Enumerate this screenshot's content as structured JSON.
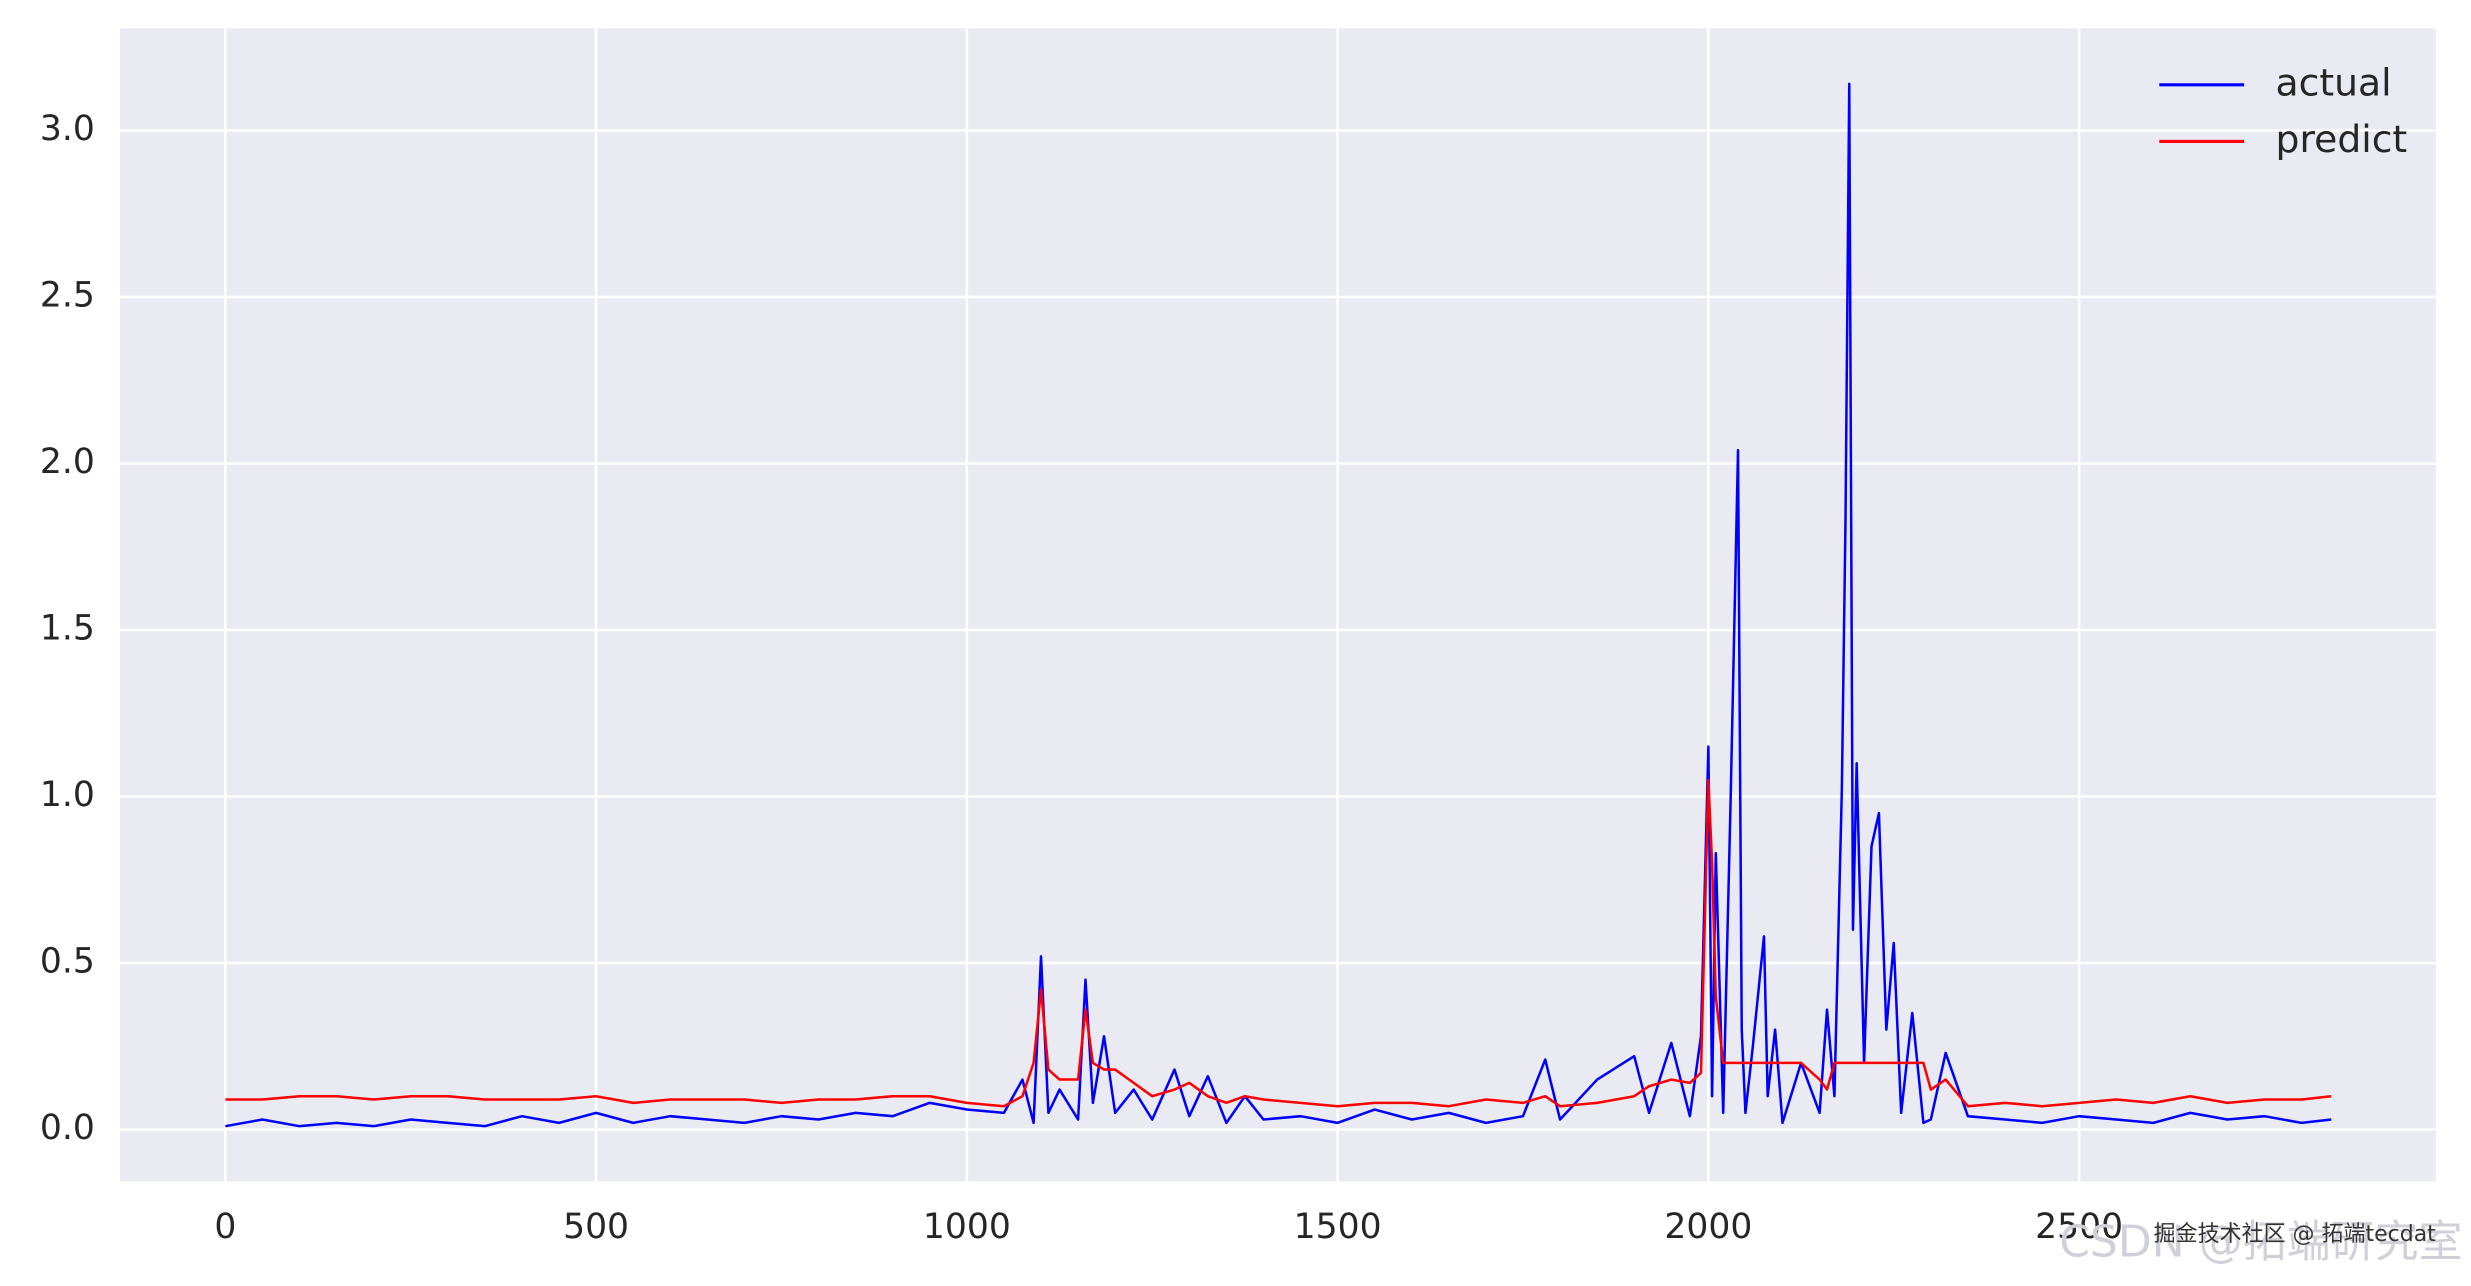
{
  "chart_data": {
    "type": "line",
    "x": [
      0,
      50,
      100,
      150,
      200,
      250,
      300,
      350,
      400,
      450,
      500,
      550,
      600,
      650,
      700,
      750,
      800,
      850,
      900,
      950,
      1000,
      1050,
      1075,
      1090,
      1100,
      1110,
      1125,
      1150,
      1160,
      1170,
      1185,
      1200,
      1225,
      1250,
      1280,
      1300,
      1325,
      1350,
      1375,
      1400,
      1450,
      1500,
      1550,
      1600,
      1650,
      1700,
      1750,
      1780,
      1800,
      1850,
      1900,
      1920,
      1950,
      1975,
      1990,
      2000,
      2005,
      2010,
      2020,
      2030,
      2040,
      2045,
      2050,
      2060,
      2075,
      2080,
      2090,
      2100,
      2125,
      2150,
      2160,
      2170,
      2180,
      2185,
      2190,
      2195,
      2200,
      2210,
      2220,
      2230,
      2240,
      2250,
      2260,
      2275,
      2290,
      2300,
      2320,
      2350,
      2400,
      2450,
      2500,
      2550,
      2600,
      2650,
      2700,
      2750,
      2800,
      2840
    ],
    "series": [
      {
        "name": "actual",
        "color": "#0000ff",
        "values": [
          0.01,
          0.03,
          0.01,
          0.02,
          0.01,
          0.03,
          0.02,
          0.01,
          0.04,
          0.02,
          0.05,
          0.02,
          0.04,
          0.03,
          0.02,
          0.04,
          0.03,
          0.05,
          0.04,
          0.08,
          0.06,
          0.05,
          0.15,
          0.02,
          0.52,
          0.05,
          0.12,
          0.03,
          0.45,
          0.08,
          0.28,
          0.05,
          0.12,
          0.03,
          0.18,
          0.04,
          0.16,
          0.02,
          0.1,
          0.03,
          0.04,
          0.02,
          0.06,
          0.03,
          0.05,
          0.02,
          0.04,
          0.21,
          0.03,
          0.15,
          0.22,
          0.05,
          0.26,
          0.04,
          0.28,
          1.15,
          0.1,
          0.83,
          0.05,
          0.99,
          2.04,
          0.3,
          0.05,
          0.25,
          0.58,
          0.1,
          0.3,
          0.02,
          0.2,
          0.05,
          0.36,
          0.1,
          1.02,
          1.84,
          3.14,
          0.6,
          1.1,
          0.2,
          0.85,
          0.95,
          0.3,
          0.56,
          0.05,
          0.35,
          0.02,
          0.03,
          0.23,
          0.04,
          0.03,
          0.02,
          0.04,
          0.03,
          0.02,
          0.05,
          0.03,
          0.04,
          0.02,
          0.03
        ]
      },
      {
        "name": "predict",
        "color": "#ff0000",
        "values": [
          0.09,
          0.09,
          0.1,
          0.1,
          0.09,
          0.1,
          0.1,
          0.09,
          0.09,
          0.09,
          0.1,
          0.08,
          0.09,
          0.09,
          0.09,
          0.08,
          0.09,
          0.09,
          0.1,
          0.1,
          0.08,
          0.07,
          0.1,
          0.2,
          0.42,
          0.18,
          0.15,
          0.15,
          0.36,
          0.2,
          0.18,
          0.18,
          0.14,
          0.1,
          0.12,
          0.14,
          0.1,
          0.08,
          0.1,
          0.09,
          0.08,
          0.07,
          0.08,
          0.08,
          0.07,
          0.09,
          0.08,
          0.1,
          0.07,
          0.08,
          0.1,
          0.13,
          0.15,
          0.14,
          0.17,
          1.05,
          0.8,
          0.4,
          0.2,
          0.2,
          0.2,
          0.2,
          0.2,
          0.2,
          0.2,
          0.2,
          0.2,
          0.2,
          0.2,
          0.15,
          0.12,
          0.2,
          0.2,
          0.2,
          0.2,
          0.2,
          0.2,
          0.2,
          0.2,
          0.2,
          0.2,
          0.2,
          0.2,
          0.2,
          0.2,
          0.12,
          0.15,
          0.07,
          0.08,
          0.07,
          0.08,
          0.09,
          0.08,
          0.1,
          0.08,
          0.09,
          0.09,
          0.1
        ]
      }
    ],
    "xlim": [
      -142,
      2981
    ],
    "ylim": [
      -0.156,
      3.307
    ],
    "xticks": [
      0,
      500,
      1000,
      1500,
      2000,
      2500
    ],
    "yticks": [
      {
        "value": 0,
        "label": "0.0"
      },
      0.5,
      {
        "value": 1,
        "label": "1.0"
      },
      1.5,
      {
        "value": 2,
        "label": "2.0"
      },
      2.5,
      {
        "value": 3,
        "label": "3.0"
      }
    ],
    "grid": true,
    "legend": "upper right",
    "background": "#eaeaf2",
    "watermarks": [
      "CSDN @拓端研究室",
      "掘金技术社区 @ 拓端tecdat"
    ]
  }
}
